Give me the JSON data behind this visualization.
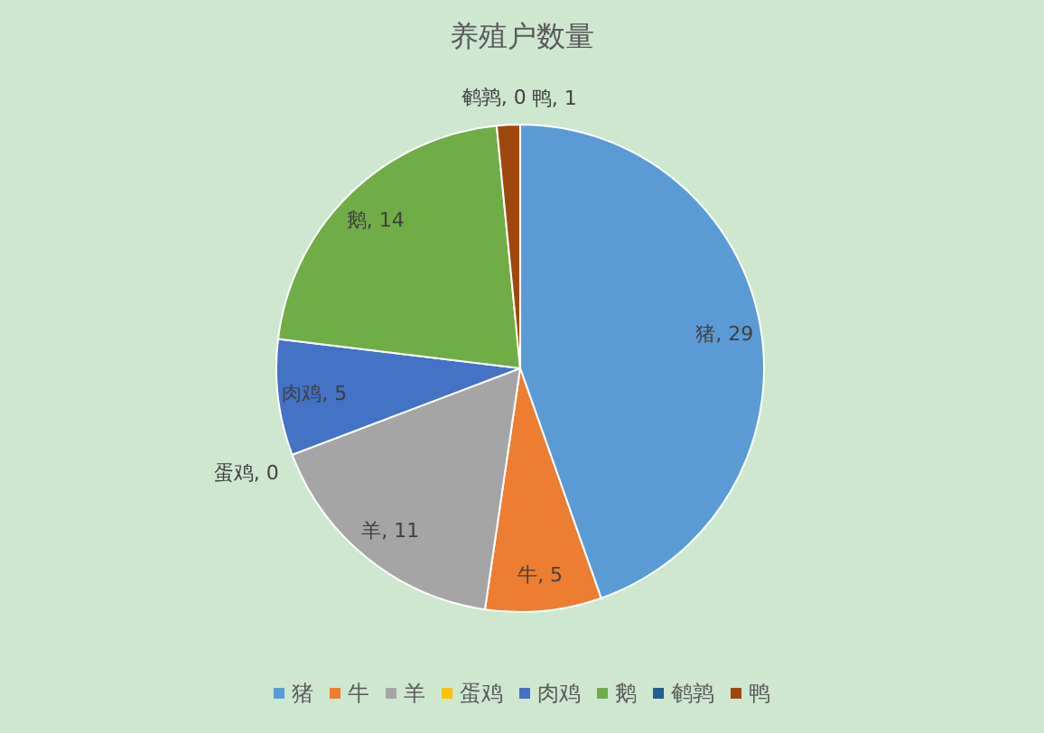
{
  "chart_data": {
    "type": "pie",
    "title": "养殖户数量",
    "categories": [
      "猪",
      "牛",
      "羊",
      "蛋鸡",
      "肉鸡",
      "鹅",
      "鹌鹑",
      "鸭"
    ],
    "values": [
      29,
      5,
      11,
      0,
      5,
      14,
      0,
      1
    ],
    "value_labels": [
      "猪, 29",
      "牛, 5",
      "羊, 11",
      "蛋鸡, 0",
      "肉鸡, 5",
      "鹅, 14",
      "鹌鹑, 0",
      "鸭, 1"
    ],
    "colors": [
      "#5b9bd5",
      "#ed7d31",
      "#a5a5a5",
      "#ffc000",
      "#4472c4",
      "#70ad47",
      "#255e91",
      "#9e480e"
    ],
    "legend": "bottom"
  }
}
